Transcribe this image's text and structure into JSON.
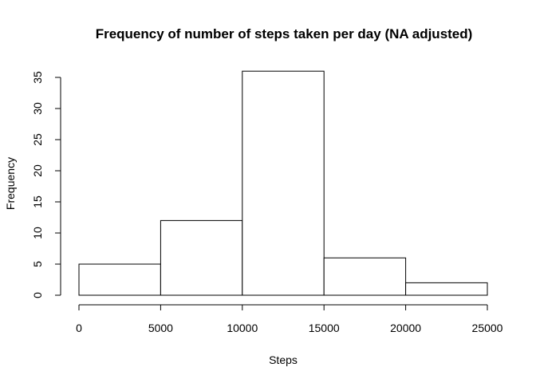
{
  "chart_data": {
    "type": "bar",
    "title": "Frequency of number of steps taken per day (NA adjusted)",
    "xlabel": "Steps",
    "ylabel": "Frequency",
    "bins": [
      {
        "from": 0,
        "to": 5000,
        "value": 5
      },
      {
        "from": 5000,
        "to": 10000,
        "value": 12
      },
      {
        "from": 10000,
        "to": 15000,
        "value": 36
      },
      {
        "from": 15000,
        "to": 20000,
        "value": 6
      },
      {
        "from": 20000,
        "to": 25000,
        "value": 2
      }
    ],
    "xticks": [
      "0",
      "5000",
      "10000",
      "15000",
      "20000",
      "25000"
    ],
    "yticks": [
      "0",
      "5",
      "10",
      "15",
      "20",
      "25",
      "30",
      "35"
    ],
    "xlim": [
      0,
      25000
    ],
    "ylim": [
      0,
      35
    ],
    "grid": false,
    "bar_fill": "#ffffff",
    "bar_stroke": "#000000"
  }
}
